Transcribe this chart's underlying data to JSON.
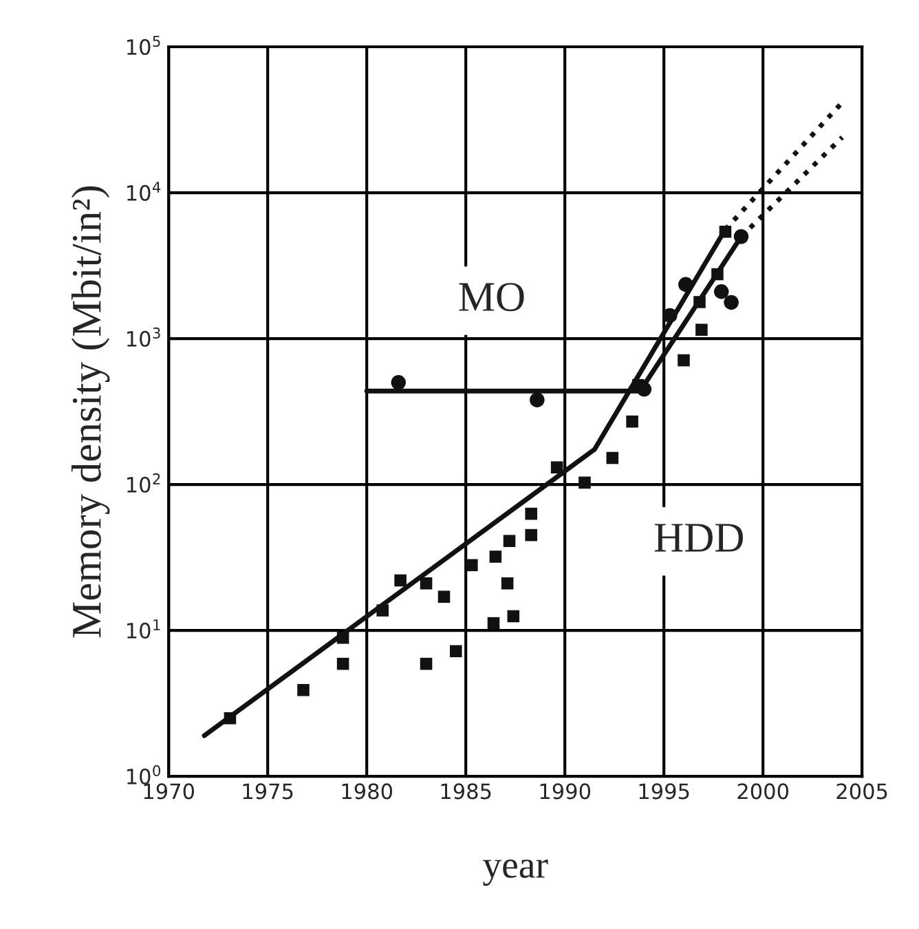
{
  "chart_data": {
    "type": "scatter",
    "xlabel": "year",
    "ylabel": "Memory density (Mbit/in²)",
    "log": "y",
    "xlim": [
      1970,
      2005
    ],
    "xticks": [
      1970,
      1975,
      1980,
      1985,
      1990,
      1995,
      2000,
      2005
    ],
    "ylim": [
      1,
      100000
    ],
    "yticks": [
      {
        "value": 1,
        "label": "10$^{0}$"
      },
      {
        "value": 10,
        "label": "10$^{1}$"
      },
      {
        "value": 100,
        "label": "10$^{2}$"
      },
      {
        "value": 1000,
        "label": "10$^{3}$"
      },
      {
        "value": 10000,
        "label": "10$^{4}$"
      },
      {
        "value": 100000,
        "label": "10$^{5}$"
      }
    ],
    "grid": true,
    "series": [
      {
        "marker": "square",
        "color": "#111111",
        "x": [
          1973.1,
          1976.8,
          1978.8,
          1978.8,
          1980.8,
          1981.7,
          1983.0,
          1983.0,
          1983.9,
          1984.5,
          1985.3,
          1986.4,
          1986.5,
          1987.2,
          1987.1,
          1987.4,
          1988.3,
          1988.3,
          1989.6,
          1991.0,
          1992.4,
          1993.4,
          1993.7,
          1996.0,
          1996.9,
          1996.8,
          1997.7,
          1998.1
        ],
        "values": [
          2.5,
          3.9,
          5.9,
          8.9,
          13.7,
          22,
          5.9,
          21,
          17,
          7.2,
          28,
          11.2,
          32,
          41,
          21,
          12.5,
          63,
          45,
          131,
          103,
          152,
          270,
          480,
          710,
          1150,
          1780,
          2760,
          5400
        ]
      },
      {
        "marker": "circle",
        "color": "#111111",
        "x": [
          1981.6,
          1988.6,
          1994.0,
          1995.3,
          1996.1,
          1997.9,
          1998.4,
          1998.9
        ],
        "values": [
          500,
          380,
          450,
          1440,
          2350,
          2100,
          1770,
          5000
        ]
      },
      {
        "type": "line",
        "line_style": "solid",
        "color": "#111111",
        "x": [
          1971.8,
          1991.5,
          1998.1
        ],
        "values": [
          1.9,
          174,
          5600
        ]
      },
      {
        "type": "line",
        "line_style": "dotted",
        "color": "#111111",
        "x": [
          1998.1,
          2004.1
        ],
        "values": [
          5600,
          43000
        ]
      },
      {
        "type": "line",
        "line_style": "solid",
        "color": "#111111",
        "x": [
          1980.0,
          1993.8,
          1998.9
        ],
        "values": [
          437,
          437,
          5000
        ]
      },
      {
        "type": "line",
        "line_style": "dotted",
        "color": "#111111",
        "x": [
          1998.9,
          2004.0
        ],
        "values": [
          5000,
          24000
        ]
      }
    ],
    "annotations": [
      "MO",
      "HDD"
    ]
  }
}
